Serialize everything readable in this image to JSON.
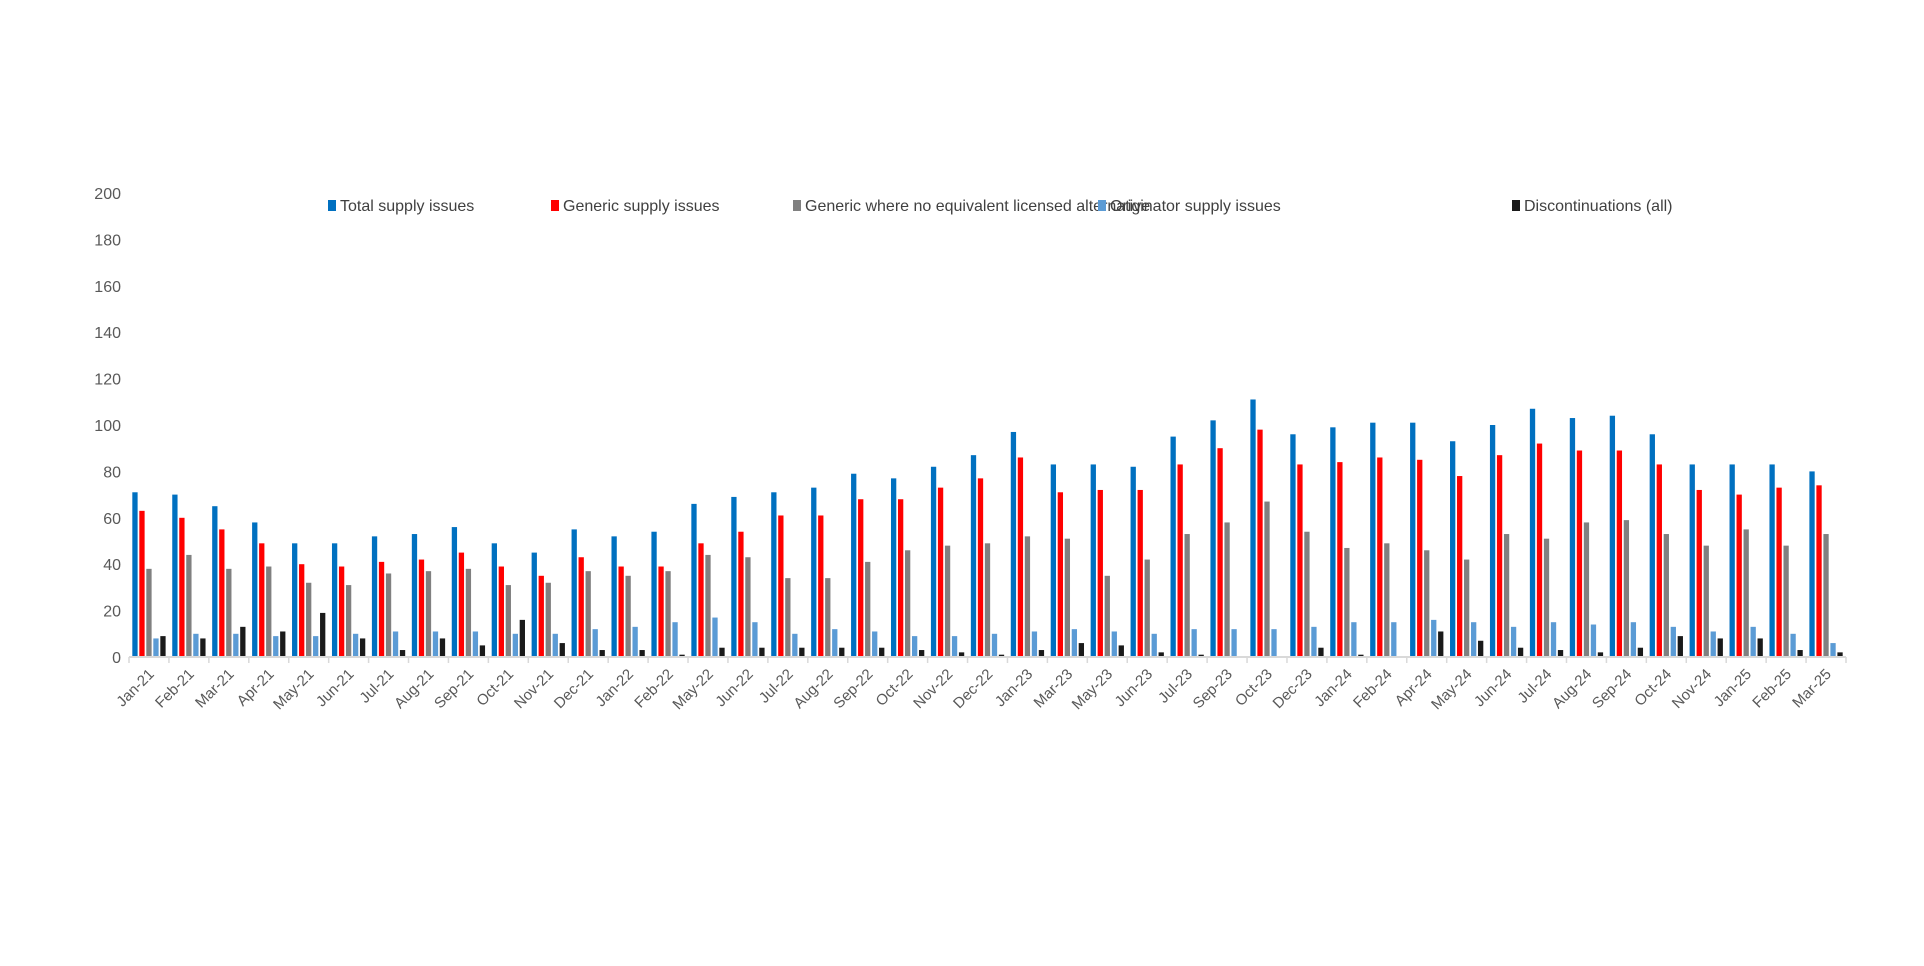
{
  "chart_data": {
    "type": "bar",
    "title": "",
    "xlabel": "",
    "ylabel": "",
    "ylim": [
      0,
      200
    ],
    "yticks": [
      0,
      20,
      40,
      60,
      80,
      100,
      120,
      140,
      160,
      180,
      200
    ],
    "grid": false,
    "legend_position": "top",
    "categories": [
      "Jan-21",
      "Feb-21",
      "Mar-21",
      "Apr-21",
      "May-21",
      "Jun-21",
      "Jul-21",
      "Aug-21",
      "Sep-21",
      "Oct-21",
      "Nov-21",
      "Dec-21",
      "Jan-22",
      "Feb-22",
      "May-22",
      "Jun-22",
      "Jul-22",
      "Aug-22",
      "Sep-22",
      "Oct-22",
      "Nov-22",
      "Dec-22",
      "Jan-23",
      "Mar-23",
      "May-23",
      "Jun-23",
      "Jul-23",
      "Sep-23",
      "Oct-23",
      "Dec-23",
      "Jan-24",
      "Feb-24",
      "Apr-24",
      "May-24",
      "Jun-24",
      "Jul-24",
      "Aug-24",
      "Sep-24",
      "Oct-24",
      "Nov-24",
      "Jan-25",
      "Feb-25",
      "Mar-25"
    ],
    "series": [
      {
        "name": "Total supply issues",
        "color": "#0070C0",
        "values": [
          71,
          70,
          65,
          58,
          49,
          49,
          52,
          53,
          56,
          49,
          45,
          55,
          52,
          54,
          66,
          69,
          71,
          73,
          79,
          77,
          82,
          87,
          97,
          83,
          83,
          82,
          95,
          102,
          111,
          96,
          99,
          101,
          101,
          93,
          100,
          107,
          103,
          104,
          96,
          83,
          83,
          83,
          80
        ]
      },
      {
        "name": "Generic supply issues",
        "color": "#FF0000",
        "values": [
          63,
          60,
          55,
          49,
          40,
          39,
          41,
          42,
          45,
          39,
          35,
          43,
          39,
          39,
          49,
          54,
          61,
          61,
          68,
          68,
          73,
          77,
          86,
          71,
          72,
          72,
          83,
          90,
          98,
          83,
          84,
          86,
          85,
          78,
          87,
          92,
          89,
          89,
          83,
          72,
          70,
          73,
          74
        ]
      },
      {
        "name": "Generic where no equivalent licensed alternative",
        "color": "#808080",
        "values": [
          38,
          44,
          38,
          39,
          32,
          31,
          36,
          37,
          38,
          31,
          32,
          37,
          35,
          37,
          44,
          43,
          34,
          34,
          41,
          46,
          48,
          49,
          52,
          51,
          35,
          42,
          53,
          58,
          67,
          54,
          47,
          49,
          46,
          42,
          53,
          51,
          58,
          59,
          53,
          48,
          55,
          48,
          53
        ]
      },
      {
        "name": "Originator supply issues",
        "color": "#5B9BD5",
        "values": [
          8,
          10,
          10,
          9,
          9,
          10,
          11,
          11,
          11,
          10,
          10,
          12,
          13,
          15,
          17,
          15,
          10,
          12,
          11,
          9,
          9,
          10,
          11,
          12,
          11,
          10,
          12,
          12,
          12,
          13,
          15,
          15,
          16,
          15,
          13,
          15,
          14,
          15,
          13,
          11,
          13,
          10,
          6
        ]
      },
      {
        "name": "Discontinuations (all)",
        "color": "#1A1A1A",
        "values": [
          9,
          8,
          13,
          11,
          19,
          8,
          3,
          8,
          5,
          16,
          6,
          3,
          3,
          1,
          4,
          4,
          4,
          4,
          4,
          3,
          2,
          1,
          3,
          6,
          5,
          2,
          1,
          0,
          0,
          4,
          1,
          0,
          11,
          7,
          4,
          3,
          2,
          4,
          9,
          8,
          8,
          3,
          2
        ]
      }
    ]
  }
}
